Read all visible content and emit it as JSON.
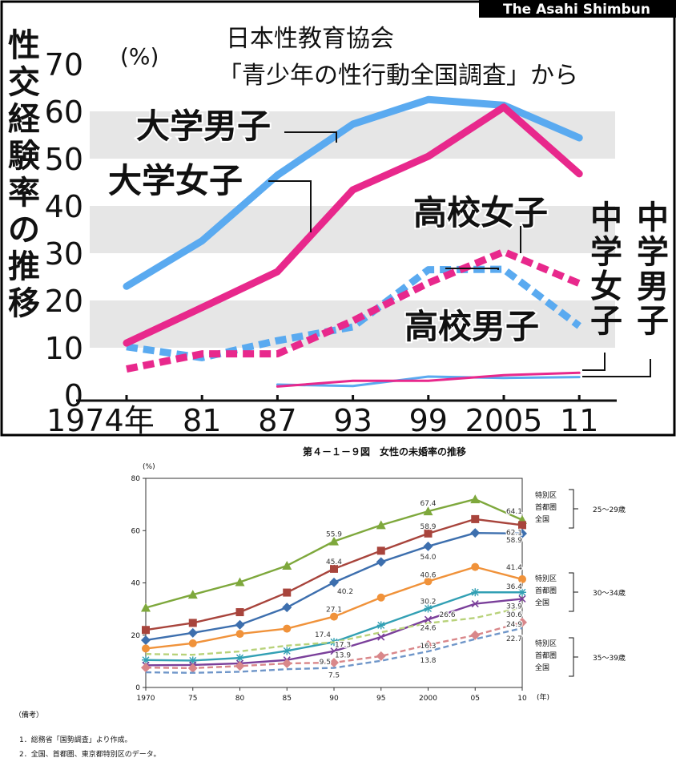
{
  "chart_data": [
    {
      "type": "line",
      "title": "性交経験率の推移",
      "credit": "The Asahi Shimbun",
      "source": [
        "日本性教育協会",
        "「青少年の性行動全国調査」から"
      ],
      "unit": "(%)",
      "categories": [
        "1974年",
        "81",
        "87",
        "93",
        "99",
        "2005",
        "11"
      ],
      "ylim": [
        0,
        70
      ],
      "yticks": [
        "0",
        "10",
        "20",
        "30",
        "40",
        "50",
        "60",
        "70"
      ],
      "series": [
        {
          "name": "大学男子",
          "color": "#5aaaf0",
          "dashed": false,
          "values": [
            23,
            32.6,
            46.5,
            57.3,
            62.5,
            61.3,
            54.4
          ]
        },
        {
          "name": "大学女子",
          "color": "#e8288c",
          "dashed": false,
          "values": [
            11,
            18.5,
            26.1,
            43.4,
            50.5,
            60.9,
            46.8
          ]
        },
        {
          "name": "高校女子",
          "color": "#e8288c",
          "dashed": true,
          "values": [
            5.5,
            8.7,
            8.7,
            15.7,
            23.7,
            30.3,
            23.6
          ]
        },
        {
          "name": "高校男子",
          "color": "#5aaaf0",
          "dashed": true,
          "values": [
            10.2,
            7.9,
            11.5,
            14.4,
            26.5,
            26.6,
            14.6
          ]
        },
        {
          "name": "中学女子",
          "color": "#e8288c",
          "dashed": false,
          "values": [
            null,
            null,
            1.8,
            3.0,
            3.0,
            4.2,
            4.7
          ]
        },
        {
          "name": "中学男子",
          "color": "#5aaaf0",
          "dashed": false,
          "values": [
            null,
            null,
            2.2,
            1.9,
            3.9,
            3.6,
            3.8
          ]
        }
      ]
    },
    {
      "type": "line",
      "title": "第４－１－９図　女性の未婚率の推移",
      "unit": "(%)",
      "x_unit": "(年)",
      "categories": [
        "1970",
        "75",
        "80",
        "85",
        "90",
        "95",
        "2000",
        "05",
        "10"
      ],
      "ylim": [
        0,
        80
      ],
      "yticks": [
        "0",
        "20",
        "40",
        "60",
        "80"
      ],
      "series": [
        {
          "name": "25～29歳 特別区",
          "color": "#7ea83c",
          "marker": "triangle",
          "dashed": false,
          "values": [
            30.5,
            35.5,
            40.3,
            46.6,
            55.9,
            62.1,
            67.4,
            72.0,
            64.1
          ]
        },
        {
          "name": "25～29歳 首都圏",
          "color": "#a8443c",
          "marker": "square",
          "dashed": false,
          "values": [
            22.0,
            24.7,
            28.8,
            36.3,
            45.4,
            52.3,
            58.9,
            64.4,
            62.1
          ]
        },
        {
          "name": "25～29歳 全国",
          "color": "#3d6fae",
          "marker": "diamond",
          "dashed": false,
          "values": [
            18.1,
            20.9,
            24.0,
            30.6,
            40.2,
            48.0,
            54.0,
            59.1,
            58.9
          ]
        },
        {
          "name": "30～34歳 特別区",
          "color": "#f0923a",
          "marker": "circle",
          "dashed": false,
          "values": [
            14.9,
            16.9,
            20.5,
            22.5,
            27.1,
            34.4,
            40.6,
            46.1,
            41.4
          ]
        },
        {
          "name": "30～34歳 首都圏",
          "color": "#32a0b4",
          "marker": "star",
          "dashed": false,
          "values": [
            10.5,
            10.3,
            11.3,
            14.0,
            17.4,
            23.8,
            30.2,
            36.4,
            36.4
          ]
        },
        {
          "name": "30～34歳 全国",
          "color": "#7a3f9a",
          "marker": "x",
          "dashed": false,
          "values": [
            8.5,
            8.6,
            9.2,
            10.5,
            13.9,
            19.3,
            26.0,
            32.0,
            33.9
          ]
        },
        {
          "name": "35～39歳 特別区",
          "color": "#b8d27a",
          "marker": "none",
          "dashed": true,
          "values": [
            12.8,
            12.5,
            13.8,
            16.0,
            17.3,
            21.1,
            24.6,
            26.6,
            30.6
          ]
        },
        {
          "name": "35～39歳 首都圏",
          "color": "#d9878a",
          "marker": "diamond",
          "dashed": true,
          "values": [
            7.6,
            7.4,
            8.2,
            9.2,
            9.5,
            12.0,
            16.3,
            20.0,
            24.9
          ]
        },
        {
          "name": "35～39歳 全国",
          "color": "#6f96c9",
          "marker": "none",
          "dashed": true,
          "values": [
            5.8,
            5.6,
            6.0,
            7.0,
            7.5,
            10.2,
            13.8,
            18.5,
            22.7
          ]
        }
      ],
      "data_labels": [
        {
          "text": "67.4",
          "xi": 6,
          "y": 67.4,
          "dy": -7,
          "anchor": "middle"
        },
        {
          "text": "64.1",
          "xi": 8,
          "y": 64.1,
          "dy": -8,
          "anchor": "end"
        },
        {
          "text": "55.9",
          "xi": 4,
          "y": 55.9,
          "dy": -6,
          "anchor": "middle"
        },
        {
          "text": "58.9",
          "xi": 6,
          "y": 58.9,
          "dy": -6,
          "anchor": "middle"
        },
        {
          "text": "62.1",
          "xi": 8,
          "y": 62.1,
          "dy": 12,
          "anchor": "end"
        },
        {
          "text": "45.4",
          "xi": 4,
          "y": 45.4,
          "dy": -6,
          "anchor": "middle"
        },
        {
          "text": "58.9",
          "xi": 8,
          "y": 58.9,
          "dy": 11,
          "anchor": "end"
        },
        {
          "text": "54.0",
          "xi": 6,
          "y": 54.0,
          "dy": 16,
          "anchor": "middle"
        },
        {
          "text": "40.2",
          "xi": 4,
          "y": 40.2,
          "dy": 14,
          "anchor": "start",
          "dx": 4
        },
        {
          "text": "41.4",
          "xi": 8,
          "y": 41.4,
          "dy": -12,
          "anchor": "end"
        },
        {
          "text": "40.6",
          "xi": 6,
          "y": 40.6,
          "dy": -5,
          "anchor": "middle"
        },
        {
          "text": "36.4",
          "xi": 8,
          "y": 36.4,
          "dy": -4,
          "anchor": "end"
        },
        {
          "text": "27.1",
          "xi": 4,
          "y": 27.1,
          "dy": -6,
          "anchor": "middle"
        },
        {
          "text": "30.2",
          "xi": 6,
          "y": 30.2,
          "dy": -6,
          "anchor": "middle"
        },
        {
          "text": "33.9",
          "xi": 8,
          "y": 33.9,
          "dy": 12,
          "anchor": "end"
        },
        {
          "text": "24.6",
          "xi": 6,
          "y": 24.6,
          "dy": 9,
          "anchor": "middle"
        },
        {
          "text": "26.6",
          "xi": 6,
          "y": 26.6,
          "dy": -1,
          "anchor": "start",
          "dx": 14
        },
        {
          "text": "30.6",
          "xi": 8,
          "y": 30.6,
          "dy": 12,
          "anchor": "end"
        },
        {
          "text": "17.4",
          "xi": 4,
          "y": 17.4,
          "dy": -6,
          "anchor": "end",
          "dx": -4
        },
        {
          "text": "17.3",
          "xi": 4,
          "y": 17.3,
          "dy": 6,
          "anchor": "start",
          "dx": 1
        },
        {
          "text": "13.9",
          "xi": 4,
          "y": 13.9,
          "dy": 8,
          "anchor": "start",
          "dx": 1
        },
        {
          "text": "9.5",
          "xi": 4,
          "y": 9.5,
          "dy": 2,
          "anchor": "end",
          "dx": -4
        },
        {
          "text": "7.5",
          "xi": 4,
          "y": 7.5,
          "dy": 12,
          "anchor": "middle"
        },
        {
          "text": "16.3",
          "xi": 6,
          "y": 16.3,
          "dy": 4,
          "anchor": "middle"
        },
        {
          "text": "13.8",
          "xi": 6,
          "y": 13.8,
          "dy": 14,
          "anchor": "middle"
        },
        {
          "text": "24.9",
          "xi": 8,
          "y": 24.9,
          "dy": 5,
          "anchor": "end"
        },
        {
          "text": "22.7",
          "xi": 8,
          "y": 22.7,
          "dy": 16,
          "anchor": "end"
        }
      ],
      "legend_groups": [
        {
          "labels": [
            "特別区",
            "首都圏",
            "全国"
          ],
          "age": "25～29歳"
        },
        {
          "labels": [
            "特別区",
            "首都圏",
            "全国"
          ],
          "age": "30～34歳"
        },
        {
          "labels": [
            "特別区",
            "首都圏",
            "全国"
          ],
          "age": "35～39歳"
        }
      ],
      "notes_heading": "（備考）",
      "notes": [
        "1．総務省「国勢調査」より作成。",
        "2．全国、首都圏、東京都特別区のデータ。"
      ]
    }
  ]
}
